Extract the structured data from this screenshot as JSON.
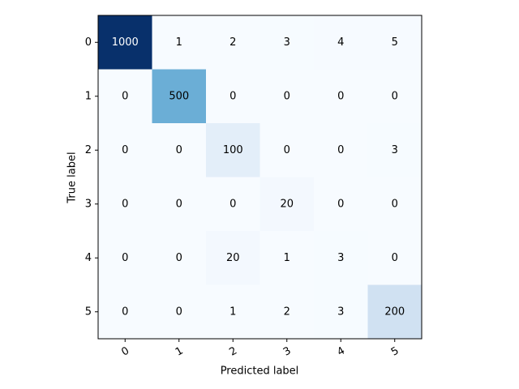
{
  "chart_data": {
    "type": "heatmap",
    "x_categories": [
      "0",
      "1",
      "2",
      "3",
      "4",
      "5"
    ],
    "y_categories": [
      "0",
      "1",
      "2",
      "3",
      "4",
      "5"
    ],
    "values": [
      [
        1000,
        1,
        2,
        3,
        4,
        5
      ],
      [
        0,
        500,
        0,
        0,
        0,
        0
      ],
      [
        0,
        0,
        100,
        0,
        0,
        3
      ],
      [
        0,
        0,
        0,
        20,
        0,
        0
      ],
      [
        0,
        0,
        20,
        1,
        3,
        0
      ],
      [
        0,
        0,
        1,
        2,
        3,
        200
      ]
    ],
    "xlabel": "Predicted label",
    "ylabel": "True label",
    "colormap": "Blues"
  }
}
